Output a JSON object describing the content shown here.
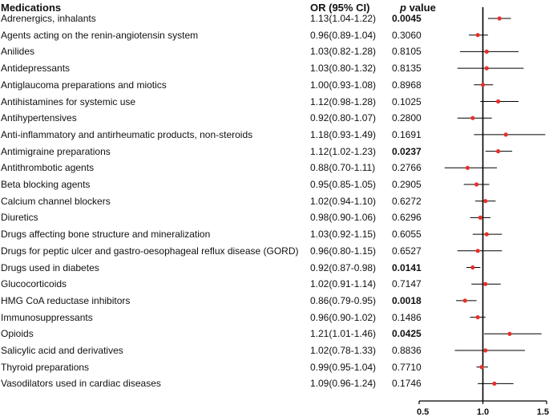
{
  "header": {
    "medications": "Medications",
    "or_ci": "OR (95% CI)",
    "p_label_italic": "p",
    "p_label_rest": " value"
  },
  "rows": [
    {
      "name": "Adrenergics, inhalants",
      "or_text": "1.13(1.04-1.22)",
      "p": "0.0045",
      "significant": true
    },
    {
      "name": "Agents acting on the renin-angiotensin system",
      "or_text": "0.96(0.89-1.04)",
      "p": "0.3060",
      "significant": false
    },
    {
      "name": "Anilides",
      "or_text": "1.03(0.82-1.28)",
      "p": "0.8105",
      "significant": false
    },
    {
      "name": "Antidepressants",
      "or_text": "1.03(0.80-1.32)",
      "p": "0.8135",
      "significant": false
    },
    {
      "name": "Antiglaucoma preparations and miotics",
      "or_text": "1.00(0.93-1.08)",
      "p": "0.8968",
      "significant": false
    },
    {
      "name": "Antihistamines for systemic use",
      "or_text": "1.12(0.98-1.28)",
      "p": "0.1025",
      "significant": false
    },
    {
      "name": "Antihypertensives",
      "or_text": "0.92(0.80-1.07)",
      "p": "0.2800",
      "significant": false
    },
    {
      "name": "Anti-inflammatory and antirheumatic products, non-steroids",
      "or_text": "1.18(0.93-1.49)",
      "p": "0.1691",
      "significant": false
    },
    {
      "name": "Antimigraine preparations",
      "or_text": "1.12(1.02-1.23)",
      "p": "0.0237",
      "significant": true
    },
    {
      "name": "Antithrombotic agents",
      "or_text": "0.88(0.70-1.11)",
      "p": "0.2766",
      "significant": false
    },
    {
      "name": "Beta blocking agents",
      "or_text": "0.95(0.85-1.05)",
      "p": "0.2905",
      "significant": false
    },
    {
      "name": "Calcium channel blockers",
      "or_text": "1.02(0.94-1.10)",
      "p": "0.6272",
      "significant": false
    },
    {
      "name": "Diuretics",
      "or_text": "0.98(0.90-1.06)",
      "p": "0.6296",
      "significant": false
    },
    {
      "name": "Drugs affecting bone structure and mineralization",
      "or_text": "1.03(0.92-1.15)",
      "p": "0.6055",
      "significant": false
    },
    {
      "name": "Drugs for peptic ulcer and gastro-oesophageal reflux disease (GORD)",
      "or_text": "0.96(0.80-1.15)",
      "p": "0.6527",
      "significant": false
    },
    {
      "name": "Drugs used in diabetes",
      "or_text": "0.92(0.87-0.98)",
      "p": "0.0141",
      "significant": true
    },
    {
      "name": "Glucocorticoids",
      "or_text": "1.02(0.91-1.14)",
      "p": "0.7147",
      "significant": false
    },
    {
      "name": "HMG CoA reductase inhibitors",
      "or_text": "0.86(0.79-0.95)",
      "p": "0.0018",
      "significant": true
    },
    {
      "name": "Immunosuppressants",
      "or_text": "0.96(0.90-1.02)",
      "p": "0.1486",
      "significant": false
    },
    {
      "name": "Opioids",
      "or_text": "1.21(1.01-1.46)",
      "p": "0.0425",
      "significant": true
    },
    {
      "name": "Salicylic acid and derivatives",
      "or_text": "1.02(0.78-1.33)",
      "p": "0.8836",
      "significant": false
    },
    {
      "name": "Thyroid preparations",
      "or_text": "0.99(0.95-1.04)",
      "p": "0.7710",
      "significant": false
    },
    {
      "name": "Vasodilators used in cardiac diseases",
      "or_text": "1.09(0.96-1.24)",
      "p": "0.1746",
      "significant": false
    }
  ],
  "chart_data": {
    "type": "forest",
    "x_label": "",
    "x_range": [
      0.5,
      1.5
    ],
    "x_ticks": [
      0.5,
      1.0,
      1.5
    ],
    "x_tick_labels": [
      "0.5",
      "1.0",
      "1.5"
    ],
    "reference_line": 1.0,
    "point_color": "#e8302a",
    "line_color": "#000000",
    "series": [
      {
        "name": "Adrenergics, inhalants",
        "or": 1.13,
        "lower": 1.04,
        "upper": 1.22
      },
      {
        "name": "Agents acting on the renin-angiotensin system",
        "or": 0.96,
        "lower": 0.89,
        "upper": 1.04
      },
      {
        "name": "Anilides",
        "or": 1.03,
        "lower": 0.82,
        "upper": 1.28
      },
      {
        "name": "Antidepressants",
        "or": 1.03,
        "lower": 0.8,
        "upper": 1.32
      },
      {
        "name": "Antiglaucoma preparations and miotics",
        "or": 1.0,
        "lower": 0.93,
        "upper": 1.08
      },
      {
        "name": "Antihistamines for systemic use",
        "or": 1.12,
        "lower": 0.98,
        "upper": 1.28
      },
      {
        "name": "Antihypertensives",
        "or": 0.92,
        "lower": 0.8,
        "upper": 1.07
      },
      {
        "name": "Anti-inflammatory and antirheumatic products, non-steroids",
        "or": 1.18,
        "lower": 0.93,
        "upper": 1.49
      },
      {
        "name": "Antimigraine preparations",
        "or": 1.12,
        "lower": 1.02,
        "upper": 1.23
      },
      {
        "name": "Antithrombotic agents",
        "or": 0.88,
        "lower": 0.7,
        "upper": 1.11
      },
      {
        "name": "Beta blocking agents",
        "or": 0.95,
        "lower": 0.85,
        "upper": 1.05
      },
      {
        "name": "Calcium channel blockers",
        "or": 1.02,
        "lower": 0.94,
        "upper": 1.1
      },
      {
        "name": "Diuretics",
        "or": 0.98,
        "lower": 0.9,
        "upper": 1.06
      },
      {
        "name": "Drugs affecting bone structure and mineralization",
        "or": 1.03,
        "lower": 0.92,
        "upper": 1.15
      },
      {
        "name": "Drugs for peptic ulcer and gastro-oesophageal reflux disease (GORD)",
        "or": 0.96,
        "lower": 0.8,
        "upper": 1.15
      },
      {
        "name": "Drugs used in diabetes",
        "or": 0.92,
        "lower": 0.87,
        "upper": 0.98
      },
      {
        "name": "Glucocorticoids",
        "or": 1.02,
        "lower": 0.91,
        "upper": 1.14
      },
      {
        "name": "HMG CoA reductase inhibitors",
        "or": 0.86,
        "lower": 0.79,
        "upper": 0.95
      },
      {
        "name": "Immunosuppressants",
        "or": 0.96,
        "lower": 0.9,
        "upper": 1.02
      },
      {
        "name": "Opioids",
        "or": 1.21,
        "lower": 1.01,
        "upper": 1.46
      },
      {
        "name": "Salicylic acid and derivatives",
        "or": 1.02,
        "lower": 0.78,
        "upper": 1.33
      },
      {
        "name": "Thyroid preparations",
        "or": 0.99,
        "lower": 0.95,
        "upper": 1.04
      },
      {
        "name": "Vasodilators used in cardiac diseases",
        "or": 1.09,
        "lower": 0.96,
        "upper": 1.24
      }
    ]
  }
}
